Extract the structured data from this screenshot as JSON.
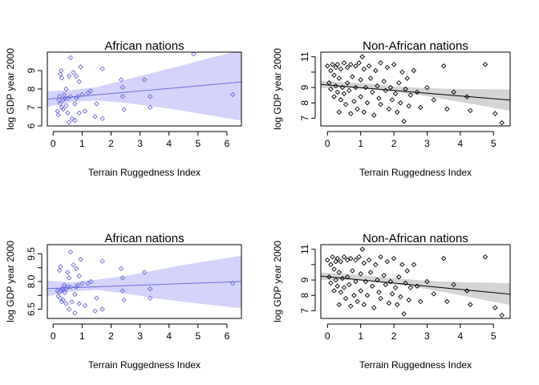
{
  "colors": {
    "africa_points": "#6b6bdc",
    "africa_line": "#6b6bdc",
    "africa_band": "#d3d3fb",
    "non_africa_points": "#000000",
    "non_africa_line": "#000000",
    "non_africa_band": "#d4d4d4"
  },
  "chart_data": [
    {
      "type": "scatter",
      "title": "African nations",
      "xlabel": "Terrain Ruggedness Index",
      "ylabel": "log GDP year 2000",
      "xlim": [
        -0.2,
        6.5
      ],
      "ylim": [
        6,
        10
      ],
      "xticks": [
        0,
        1,
        2,
        3,
        4,
        5,
        6
      ],
      "yticks": [
        6,
        7,
        8,
        9
      ],
      "theme": "africa",
      "points": [
        [
          0.15,
          6.8
        ],
        [
          0.18,
          6.6
        ],
        [
          0.2,
          7.4
        ],
        [
          0.22,
          7.6
        ],
        [
          0.25,
          7.2
        ],
        [
          0.25,
          8.8
        ],
        [
          0.28,
          9.0
        ],
        [
          0.3,
          7.0
        ],
        [
          0.3,
          8.6
        ],
        [
          0.35,
          6.9
        ],
        [
          0.35,
          7.4
        ],
        [
          0.38,
          7.7
        ],
        [
          0.4,
          7.5
        ],
        [
          0.45,
          7.1
        ],
        [
          0.45,
          8.0
        ],
        [
          0.5,
          6.7
        ],
        [
          0.5,
          7.5
        ],
        [
          0.55,
          8.7
        ],
        [
          0.55,
          6.2
        ],
        [
          0.6,
          9.7
        ],
        [
          0.6,
          7.6
        ],
        [
          0.65,
          6.4
        ],
        [
          0.7,
          8.9
        ],
        [
          0.75,
          6.3
        ],
        [
          0.75,
          7.2
        ],
        [
          0.8,
          8.7
        ],
        [
          0.8,
          7.5
        ],
        [
          0.85,
          7.6
        ],
        [
          0.9,
          8.4
        ],
        [
          0.9,
          6.7
        ],
        [
          0.95,
          9.2
        ],
        [
          1.0,
          7.7
        ],
        [
          1.1,
          6.8
        ],
        [
          1.2,
          7.8
        ],
        [
          1.3,
          7.9
        ],
        [
          1.45,
          6.5
        ],
        [
          1.5,
          7.2
        ],
        [
          1.7,
          6.4
        ],
        [
          1.7,
          9.1
        ],
        [
          2.35,
          8.5
        ],
        [
          2.4,
          7.6
        ],
        [
          2.4,
          8.1
        ],
        [
          2.45,
          6.9
        ],
        [
          3.15,
          8.5
        ],
        [
          3.35,
          7.0
        ],
        [
          3.35,
          7.6
        ],
        [
          4.85,
          9.9
        ],
        [
          6.2,
          7.7
        ]
      ],
      "fit": {
        "x": [
          -0.2,
          6.5
        ],
        "y": [
          7.45,
          8.38
        ]
      },
      "band": {
        "x": [
          -0.2,
          0.6,
          1.5,
          2.5,
          3.5,
          4.5,
          5.5,
          6.5
        ],
        "lower": [
          7.02,
          7.3,
          7.38,
          7.25,
          7.05,
          6.82,
          6.55,
          6.28
        ],
        "upper": [
          7.88,
          7.95,
          8.1,
          8.5,
          8.9,
          9.3,
          9.72,
          10.1
        ]
      }
    },
    {
      "type": "scatter",
      "title": "Non-African nations",
      "xlabel": "Terrain Ruggedness Index",
      "ylabel": "log GDP year 2000",
      "xlim": [
        -0.2,
        5.5
      ],
      "ylim": [
        6.5,
        11.3
      ],
      "xticks": [
        0,
        1,
        2,
        3,
        4,
        5
      ],
      "yticks": [
        7,
        8,
        9,
        10,
        11
      ],
      "ytick_labels": [
        "7",
        "8",
        "9",
        "",
        "11"
      ],
      "theme": "non_africa",
      "points": [
        [
          0.0,
          10.4
        ],
        [
          0.05,
          9.3
        ],
        [
          0.1,
          10.1
        ],
        [
          0.1,
          8.9
        ],
        [
          0.15,
          10.5
        ],
        [
          0.2,
          9.8
        ],
        [
          0.2,
          8.4
        ],
        [
          0.25,
          10.3
        ],
        [
          0.25,
          9.1
        ],
        [
          0.3,
          8.7
        ],
        [
          0.3,
          10.5
        ],
        [
          0.35,
          7.4
        ],
        [
          0.35,
          9.6
        ],
        [
          0.4,
          10.2
        ],
        [
          0.4,
          8.2
        ],
        [
          0.45,
          9.0
        ],
        [
          0.5,
          10.6
        ],
        [
          0.5,
          8.6
        ],
        [
          0.55,
          7.9
        ],
        [
          0.6,
          10.3
        ],
        [
          0.6,
          9.3
        ],
        [
          0.65,
          8.8
        ],
        [
          0.7,
          10.5
        ],
        [
          0.7,
          7.3
        ],
        [
          0.75,
          9.7
        ],
        [
          0.8,
          8.1
        ],
        [
          0.85,
          10.4
        ],
        [
          0.85,
          9.0
        ],
        [
          0.9,
          7.6
        ],
        [
          0.95,
          10.6
        ],
        [
          1.0,
          9.5
        ],
        [
          1.0,
          8.4
        ],
        [
          1.05,
          11.0
        ],
        [
          1.1,
          10.2
        ],
        [
          1.1,
          7.4
        ],
        [
          1.15,
          9.0
        ],
        [
          1.2,
          8.0
        ],
        [
          1.25,
          10.4
        ],
        [
          1.3,
          9.6
        ],
        [
          1.35,
          8.7
        ],
        [
          1.4,
          7.2
        ],
        [
          1.45,
          10.1
        ],
        [
          1.5,
          9.1
        ],
        [
          1.55,
          8.3
        ],
        [
          1.6,
          10.6
        ],
        [
          1.6,
          7.9
        ],
        [
          1.7,
          9.4
        ],
        [
          1.75,
          8.8
        ],
        [
          1.8,
          10.3
        ],
        [
          1.85,
          7.6
        ],
        [
          1.9,
          9.0
        ],
        [
          1.95,
          8.2
        ],
        [
          2.0,
          10.5
        ],
        [
          2.05,
          8.6
        ],
        [
          2.1,
          7.4
        ],
        [
          2.15,
          9.3
        ],
        [
          2.2,
          8.0
        ],
        [
          2.25,
          10.0
        ],
        [
          2.3,
          6.8
        ],
        [
          2.35,
          8.9
        ],
        [
          2.4,
          9.6
        ],
        [
          2.45,
          7.8
        ],
        [
          2.5,
          8.5
        ],
        [
          2.6,
          10.1
        ],
        [
          2.7,
          8.7
        ],
        [
          2.8,
          7.7
        ],
        [
          3.0,
          9.0
        ],
        [
          3.2,
          8.2
        ],
        [
          3.5,
          10.4
        ],
        [
          3.6,
          7.6
        ],
        [
          3.8,
          8.7
        ],
        [
          4.2,
          8.4
        ],
        [
          4.3,
          7.5
        ],
        [
          4.75,
          10.5
        ],
        [
          5.05,
          7.3
        ],
        [
          5.25,
          6.7
        ]
      ],
      "fit": {
        "x": [
          -0.2,
          5.5
        ],
        "y": [
          9.2,
          8.18
        ]
      },
      "band": {
        "x": [
          -0.2,
          0.5,
          1.2,
          2.0,
          2.8,
          3.5,
          4.2,
          4.9,
          5.5
        ],
        "lower": [
          8.95,
          8.98,
          8.9,
          8.72,
          8.5,
          8.25,
          7.98,
          7.72,
          7.48
        ],
        "upper": [
          9.45,
          9.35,
          9.25,
          9.1,
          8.98,
          8.92,
          8.9,
          8.88,
          8.88
        ]
      }
    },
    {
      "type": "scatter",
      "title": "African nations",
      "xlabel": "Terrain Ruggedness Index",
      "ylabel": "log GDP year 2000",
      "xlim": [
        -0.2,
        6.5
      ],
      "ylim": [
        6.0,
        10.0
      ],
      "xticks": [
        0,
        1,
        2,
        3,
        4,
        5,
        6
      ],
      "yticks": [
        6.5,
        8.0,
        9.5
      ],
      "ytick_labels": [
        "6.5",
        "8.0",
        "9.5"
      ],
      "extra_yticks": [
        7.25,
        8.75
      ],
      "theme": "africa",
      "points": [
        [
          0.15,
          7.5
        ],
        [
          0.18,
          7.2
        ],
        [
          0.2,
          7.4
        ],
        [
          0.22,
          8.6
        ],
        [
          0.25,
          7.1
        ],
        [
          0.25,
          8.8
        ],
        [
          0.28,
          7.5
        ],
        [
          0.3,
          6.9
        ],
        [
          0.3,
          7.6
        ],
        [
          0.35,
          7.0
        ],
        [
          0.35,
          7.6
        ],
        [
          0.38,
          7.8
        ],
        [
          0.4,
          7.4
        ],
        [
          0.45,
          6.8
        ],
        [
          0.45,
          7.6
        ],
        [
          0.5,
          8.5
        ],
        [
          0.5,
          7.7
        ],
        [
          0.55,
          6.5
        ],
        [
          0.55,
          8.2
        ],
        [
          0.6,
          9.6
        ],
        [
          0.6,
          7.7
        ],
        [
          0.65,
          6.9
        ],
        [
          0.7,
          8.9
        ],
        [
          0.75,
          6.3
        ],
        [
          0.75,
          7.3
        ],
        [
          0.8,
          8.7
        ],
        [
          0.8,
          7.7
        ],
        [
          0.85,
          7.8
        ],
        [
          0.9,
          8.3
        ],
        [
          0.9,
          6.8
        ],
        [
          0.95,
          9.2
        ],
        [
          1.0,
          7.9
        ],
        [
          1.1,
          6.7
        ],
        [
          1.2,
          7.9
        ],
        [
          1.3,
          8.0
        ],
        [
          1.45,
          6.4
        ],
        [
          1.5,
          7.1
        ],
        [
          1.7,
          6.5
        ],
        [
          1.7,
          9.1
        ],
        [
          2.35,
          8.7
        ],
        [
          2.4,
          7.5
        ],
        [
          2.4,
          8.2
        ],
        [
          2.45,
          7.0
        ],
        [
          3.15,
          8.5
        ],
        [
          3.35,
          7.1
        ],
        [
          3.35,
          7.6
        ],
        [
          6.2,
          7.9
        ]
      ],
      "fit": {
        "x": [
          -0.2,
          6.5
        ],
        "y": [
          7.62,
          8.0
        ]
      },
      "band": {
        "x": [
          -0.2,
          0.6,
          1.5,
          2.5,
          3.5,
          4.5,
          5.5,
          6.5
        ],
        "lower": [
          7.2,
          7.45,
          7.55,
          7.35,
          7.1,
          6.9,
          6.72,
          6.55
        ],
        "upper": [
          8.05,
          7.95,
          8.1,
          8.3,
          8.6,
          8.9,
          9.15,
          9.4
        ]
      }
    },
    {
      "type": "scatter",
      "title": "Non-African nations",
      "xlabel": "Terrain Ruggedness Index",
      "ylabel": "log GDP year 2000",
      "xlim": [
        -0.2,
        5.5
      ],
      "ylim": [
        6.5,
        11.3
      ],
      "xticks": [
        0,
        1,
        2,
        3,
        4,
        5
      ],
      "yticks": [
        7,
        8,
        9,
        10,
        11
      ],
      "ytick_labels": [
        "7",
        "8",
        "9",
        "",
        "11"
      ],
      "theme": "non_africa",
      "points": [
        [
          0.0,
          10.3
        ],
        [
          0.05,
          9.2
        ],
        [
          0.1,
          10.0
        ],
        [
          0.1,
          8.8
        ],
        [
          0.15,
          10.5
        ],
        [
          0.2,
          9.7
        ],
        [
          0.2,
          8.3
        ],
        [
          0.25,
          10.2
        ],
        [
          0.25,
          9.0
        ],
        [
          0.3,
          8.6
        ],
        [
          0.3,
          10.4
        ],
        [
          0.35,
          7.4
        ],
        [
          0.35,
          9.5
        ],
        [
          0.4,
          10.2
        ],
        [
          0.4,
          8.2
        ],
        [
          0.45,
          9.1
        ],
        [
          0.5,
          10.5
        ],
        [
          0.5,
          8.5
        ],
        [
          0.55,
          7.8
        ],
        [
          0.6,
          10.3
        ],
        [
          0.6,
          9.2
        ],
        [
          0.65,
          8.7
        ],
        [
          0.7,
          10.4
        ],
        [
          0.7,
          7.3
        ],
        [
          0.75,
          9.6
        ],
        [
          0.8,
          8.0
        ],
        [
          0.85,
          10.3
        ],
        [
          0.85,
          8.9
        ],
        [
          0.9,
          7.6
        ],
        [
          0.95,
          10.5
        ],
        [
          1.0,
          9.4
        ],
        [
          1.0,
          8.3
        ],
        [
          1.05,
          11.0
        ],
        [
          1.1,
          10.1
        ],
        [
          1.1,
          7.4
        ],
        [
          1.15,
          8.9
        ],
        [
          1.2,
          8.0
        ],
        [
          1.25,
          10.3
        ],
        [
          1.3,
          9.5
        ],
        [
          1.35,
          8.6
        ],
        [
          1.4,
          7.2
        ],
        [
          1.45,
          10.0
        ],
        [
          1.5,
          9.0
        ],
        [
          1.55,
          8.2
        ],
        [
          1.6,
          10.5
        ],
        [
          1.6,
          7.8
        ],
        [
          1.7,
          9.3
        ],
        [
          1.75,
          8.7
        ],
        [
          1.8,
          10.2
        ],
        [
          1.85,
          7.5
        ],
        [
          1.9,
          8.9
        ],
        [
          1.95,
          8.1
        ],
        [
          2.0,
          10.4
        ],
        [
          2.05,
          8.5
        ],
        [
          2.1,
          7.4
        ],
        [
          2.15,
          9.2
        ],
        [
          2.2,
          7.9
        ],
        [
          2.25,
          10.0
        ],
        [
          2.3,
          6.8
        ],
        [
          2.35,
          8.8
        ],
        [
          2.4,
          9.6
        ],
        [
          2.45,
          7.7
        ],
        [
          2.5,
          8.5
        ],
        [
          2.6,
          10.0
        ],
        [
          2.7,
          8.6
        ],
        [
          2.8,
          7.6
        ],
        [
          3.0,
          8.9
        ],
        [
          3.2,
          8.1
        ],
        [
          3.5,
          10.4
        ],
        [
          3.6,
          7.6
        ],
        [
          3.8,
          8.7
        ],
        [
          4.2,
          8.3
        ],
        [
          4.3,
          7.4
        ],
        [
          4.75,
          10.5
        ],
        [
          5.05,
          7.2
        ],
        [
          5.25,
          6.7
        ]
      ],
      "fit": {
        "x": [
          -0.2,
          5.5
        ],
        "y": [
          9.25,
          8.08
        ]
      },
      "band": {
        "x": [
          -0.2,
          0.5,
          1.2,
          2.0,
          2.8,
          3.5,
          4.2,
          4.9,
          5.5
        ],
        "lower": [
          9.0,
          9.02,
          8.92,
          8.72,
          8.48,
          8.2,
          7.92,
          7.62,
          7.38
        ],
        "upper": [
          9.5,
          9.4,
          9.28,
          9.12,
          8.98,
          8.9,
          8.85,
          8.82,
          8.8
        ]
      }
    }
  ]
}
